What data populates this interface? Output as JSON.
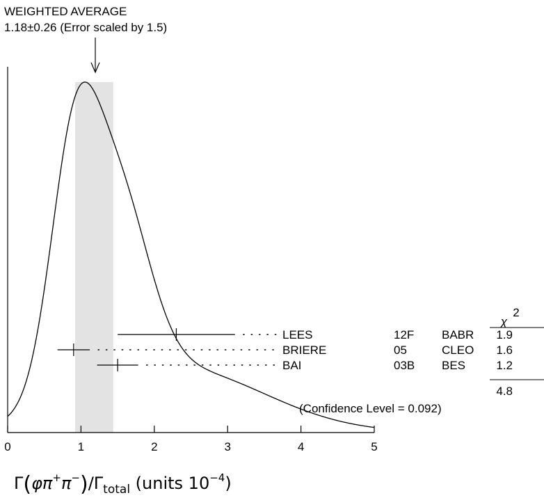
{
  "header": {
    "line1": "WEIGHTED AVERAGE",
    "line2": "1.18±0.26 (Error scaled by 1.5)"
  },
  "chart_data": {
    "type": "ideogram",
    "weighted_average": {
      "value": 1.18,
      "error": 0.26,
      "error_scale_factor": 1.5
    },
    "xlabel": "Γ(φπ⁺π⁻)/Γtotal (units 10⁻⁴)",
    "xlim": [
      0,
      5
    ],
    "x_ticks": [
      "0",
      "1",
      "2",
      "3",
      "4",
      "5"
    ],
    "chi2_header": "χ²",
    "measurements": [
      {
        "author": "LEES",
        "year": "12F",
        "experiment": "BABR",
        "value": 2.3,
        "err_low": 0.8,
        "err_high": 0.8,
        "chi2": "1.9"
      },
      {
        "author": "BRIERE",
        "year": "05",
        "experiment": "CLEO",
        "value": 0.9,
        "err_low": 0.22,
        "err_high": 0.22,
        "chi2": "1.6"
      },
      {
        "author": "BAI",
        "year": "03B",
        "experiment": "BES",
        "value": 1.5,
        "err_low": 0.28,
        "err_high": 0.28,
        "chi2": "1.2"
      }
    ],
    "chi2_total": "4.8",
    "confidence_level": "(Confidence Level = 0.092)"
  }
}
